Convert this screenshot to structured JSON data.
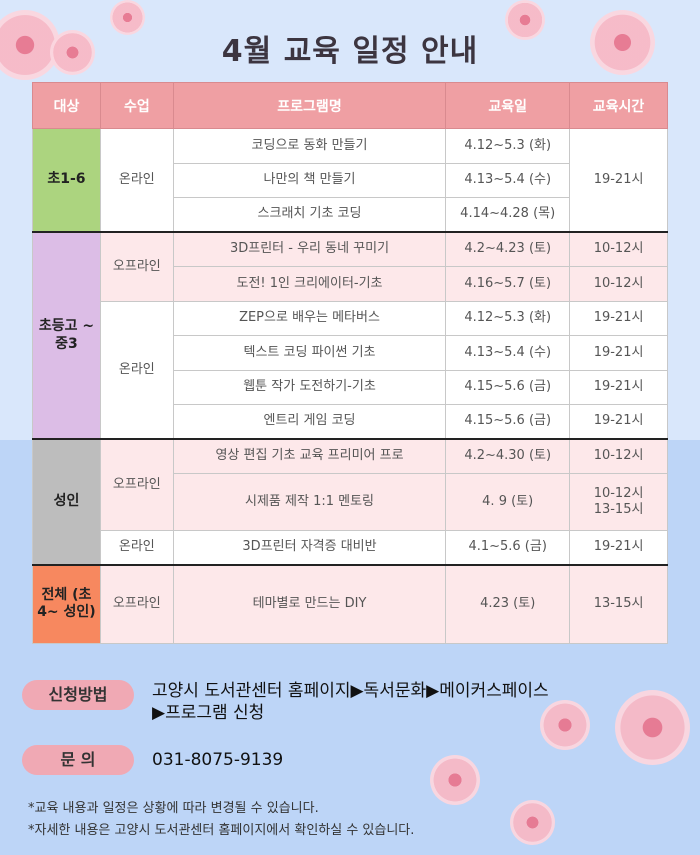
{
  "title": "4월 교육 일정 안내",
  "header": [
    "대상",
    "수업",
    "프로그램명",
    "교육일",
    "교육시간"
  ],
  "groups": [
    {
      "target": "초1-6",
      "color": "#acd47f",
      "time_shared": "19-21시",
      "classes": [
        {
          "mode": "온라인",
          "offline": false,
          "programs": [
            {
              "name": "코딩으로 동화 만들기",
              "date": "4.12~5.3 (화)"
            },
            {
              "name": "나만의 책 만들기",
              "date": "4.13~5.4 (수)"
            },
            {
              "name": "스크래치 기초 코딩",
              "date": "4.14~4.28 (목)"
            }
          ]
        }
      ]
    },
    {
      "target": "초등고 ~ 중3",
      "color": "#dcbde6",
      "classes": [
        {
          "mode": "오프라인",
          "offline": true,
          "programs": [
            {
              "name": "3D프린터 - 우리 동네 꾸미기",
              "date": "4.2~4.23 (토)",
              "time": "10-12시"
            },
            {
              "name": "도전! 1인 크리에이터-기초",
              "date": "4.16~5.7 (토)",
              "time": "10-12시"
            }
          ]
        },
        {
          "mode": "온라인",
          "offline": false,
          "programs": [
            {
              "name": "ZEP으로 배우는 메타버스",
              "date": "4.12~5.3 (화)",
              "time": "19-21시"
            },
            {
              "name": "텍스트 코딩 파이썬 기초",
              "date": "4.13~5.4 (수)",
              "time": "19-21시"
            },
            {
              "name": "웹툰 작가 도전하기-기초",
              "date": "4.15~5.6 (금)",
              "time": "19-21시"
            },
            {
              "name": "엔트리 게임 코딩",
              "date": "4.15~5.6 (금)",
              "time": "19-21시"
            }
          ]
        }
      ]
    },
    {
      "target": "성인",
      "color": "#bdbdbd",
      "classes": [
        {
          "mode": "오프라인",
          "offline": true,
          "programs": [
            {
              "name": "영상 편집 기초 교육 프리미어  프로",
              "date": "4.2~4.30 (토)",
              "time": "10-12시"
            },
            {
              "name": "시제품 제작 1:1 멘토링",
              "date": "4. 9 (토)",
              "time": "10-12시\n13-15시"
            }
          ]
        },
        {
          "mode": "온라인",
          "offline": false,
          "programs": [
            {
              "name": "3D프린터 자격증 대비반",
              "date": "4.1~5.6 (금)",
              "time": "19-21시"
            }
          ]
        }
      ]
    },
    {
      "target": "전체 (초4~ 성인)",
      "color": "#f7885f",
      "classes": [
        {
          "mode": "오프라인",
          "offline": true,
          "programs": [
            {
              "name": "테마별로 만드는 DIY",
              "date": "4.23 (토)",
              "time": "13-15시"
            }
          ]
        }
      ]
    }
  ],
  "apply": {
    "label": "신청방법",
    "line1": "고양시 도서관센터 홈페이지▶독서문화▶메이커스페이스",
    "line2": "▶프로그램 신청"
  },
  "contact": {
    "label": "문  의",
    "phone": "031-8075-9139"
  },
  "notes": [
    "*교육 내용과 일정은 상황에 따라 변경될 수 있습니다.",
    "*자세한 내용은 고양시 도서관센터 홈페이지에서 확인하실 수 있습니다."
  ]
}
